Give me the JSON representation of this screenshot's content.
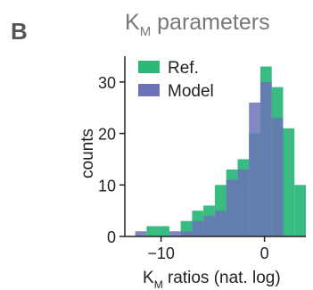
{
  "panel_label": "B",
  "title": {
    "main": "K",
    "sub": "M",
    "rest": " parameters"
  },
  "xlabel": {
    "main": "K",
    "sub": "M",
    "rest": " ratios (nat. log)"
  },
  "chart_data": {
    "type": "histogram",
    "ylabel": "counts",
    "xlim": [
      -13.5,
      4
    ],
    "ylim": [
      0,
      35
    ],
    "x_ticks": [
      -10,
      0
    ],
    "x_tick_labels": [
      "−10",
      "0"
    ],
    "y_ticks": [
      0,
      10,
      20,
      30
    ],
    "y_tick_labels": [
      "0",
      "10",
      "20",
      "30"
    ],
    "bin_edges": [
      -12.5,
      -11.4,
      -10.3,
      -9.2,
      -8.1,
      -7.0,
      -5.9,
      -4.8,
      -3.7,
      -2.6,
      -1.5,
      -0.4,
      0.7,
      1.8,
      2.9,
      4.0
    ],
    "legend_position": "top-left",
    "series": [
      {
        "name": "Ref.",
        "color": "#2DB87A",
        "values": [
          0,
          2,
          2,
          0,
          3,
          5,
          6,
          10,
          13,
          15,
          20,
          33,
          29,
          21,
          10
        ]
      },
      {
        "name": "Model",
        "color": "#6B72B6",
        "values": [
          1,
          0,
          0,
          1,
          1,
          3,
          4,
          5,
          11,
          13,
          26,
          30,
          23,
          0,
          0
        ]
      }
    ]
  }
}
